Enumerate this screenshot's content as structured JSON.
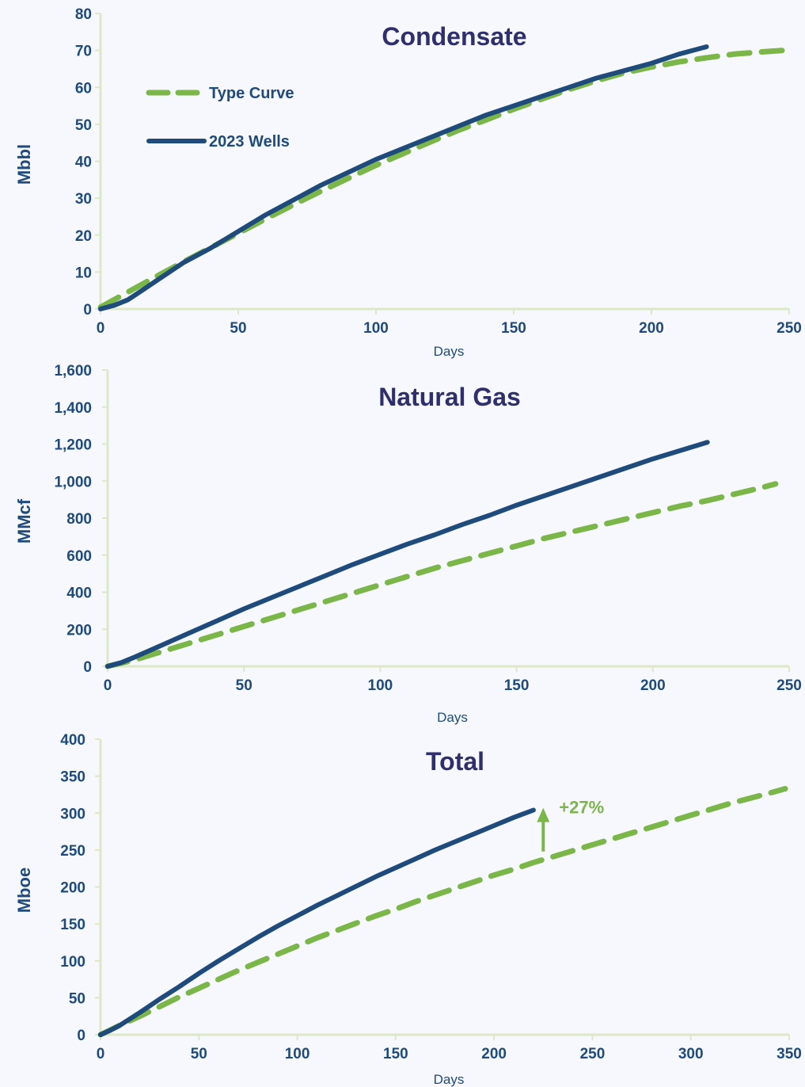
{
  "colors": {
    "type_curve": "#7ab648",
    "wells": "#1f4a7c",
    "axis": "#dce9c6",
    "tick_text": "#1f4a7c",
    "title": "#2f2f6e",
    "background": "#f6f8fd"
  },
  "legend": {
    "type_curve_label": "Type Curve",
    "wells_label": "2023 Wells"
  },
  "chart_data": [
    {
      "type": "line",
      "title": "Condensate",
      "xlabel": "Days",
      "ylabel": "Mbbl",
      "xlim": [
        0,
        250
      ],
      "ylim": [
        0,
        80
      ],
      "xticks": [
        0,
        50,
        100,
        150,
        200,
        250
      ],
      "yticks": [
        0,
        10,
        20,
        30,
        40,
        50,
        60,
        70,
        80
      ],
      "ytick_labels": [
        "0",
        "10",
        "20",
        "30",
        "40",
        "50",
        "60",
        "70",
        "80"
      ],
      "legend_position": "top-left",
      "series": [
        {
          "name": "Type Curve",
          "style": "dashed",
          "x": [
            0,
            10,
            20,
            30,
            40,
            50,
            60,
            70,
            80,
            90,
            100,
            110,
            120,
            130,
            140,
            150,
            160,
            170,
            180,
            190,
            200,
            210,
            220,
            230,
            240,
            248
          ],
          "y": [
            0.5,
            4.6,
            8.7,
            12.7,
            16.6,
            20.5,
            24.4,
            28.2,
            31.9,
            35.4,
            38.9,
            42.1,
            45.3,
            48.4,
            51.2,
            54.1,
            56.8,
            59.4,
            61.8,
            63.9,
            65.5,
            66.9,
            68.0,
            69.0,
            69.6,
            70.0
          ]
        },
        {
          "name": "2023 Wells",
          "style": "solid",
          "x": [
            0,
            5,
            10,
            15,
            20,
            30,
            40,
            50,
            60,
            70,
            80,
            90,
            100,
            110,
            120,
            130,
            140,
            150,
            160,
            170,
            180,
            190,
            200,
            210,
            220
          ],
          "y": [
            0.0,
            1.0,
            2.5,
            5.0,
            7.5,
            12.5,
            16.5,
            21.0,
            25.5,
            29.5,
            33.5,
            37.0,
            40.5,
            43.5,
            46.5,
            49.5,
            52.5,
            55.0,
            57.5,
            60.0,
            62.5,
            64.5,
            66.5,
            69.0,
            71.0
          ]
        }
      ]
    },
    {
      "type": "line",
      "title": "Natural Gas",
      "xlabel": "Days",
      "ylabel": "MMcf",
      "xlim": [
        0,
        250
      ],
      "ylim": [
        0,
        1600
      ],
      "xticks": [
        0,
        50,
        100,
        150,
        200,
        250
      ],
      "yticks": [
        0,
        200,
        400,
        600,
        800,
        1000,
        1200,
        1400,
        1600
      ],
      "ytick_labels": [
        "0",
        "200",
        "400",
        "600",
        "800",
        "1,000",
        "1,200",
        "1,400",
        "1,600"
      ],
      "series": [
        {
          "name": "Type Curve",
          "style": "dashed",
          "x": [
            0,
            10,
            20,
            30,
            40,
            50,
            60,
            70,
            80,
            90,
            100,
            110,
            120,
            130,
            140,
            150,
            160,
            170,
            180,
            190,
            200,
            210,
            220,
            230,
            240,
            245
          ],
          "y": [
            0,
            35,
            80,
            125,
            170,
            215,
            260,
            305,
            350,
            395,
            440,
            485,
            530,
            570,
            610,
            650,
            690,
            725,
            760,
            795,
            830,
            865,
            895,
            930,
            965,
            985
          ]
        },
        {
          "name": "2023 Wells",
          "style": "solid",
          "x": [
            0,
            5,
            10,
            20,
            30,
            40,
            50,
            60,
            70,
            80,
            90,
            100,
            110,
            120,
            130,
            140,
            150,
            160,
            170,
            180,
            190,
            200,
            210,
            220
          ],
          "y": [
            0,
            20,
            50,
            115,
            180,
            245,
            310,
            370,
            430,
            490,
            550,
            605,
            660,
            710,
            765,
            815,
            870,
            920,
            970,
            1020,
            1070,
            1120,
            1165,
            1210
          ]
        }
      ]
    },
    {
      "type": "line",
      "title": "Total",
      "xlabel": "Days",
      "ylabel": "Mboe",
      "xlim": [
        0,
        350
      ],
      "ylim": [
        0,
        400
      ],
      "xticks": [
        0,
        50,
        100,
        150,
        200,
        250,
        300,
        350
      ],
      "yticks": [
        0,
        50,
        100,
        150,
        200,
        250,
        300,
        350,
        400
      ],
      "ytick_labels": [
        "0",
        "50",
        "100",
        "150",
        "200",
        "250",
        "300",
        "350",
        "400"
      ],
      "annotation": {
        "text": "+27%",
        "x": 225,
        "y_from": 248,
        "y_to": 306
      },
      "series": [
        {
          "name": "Type Curve",
          "style": "dashed",
          "x": [
            0,
            10,
            20,
            30,
            40,
            50,
            60,
            70,
            80,
            90,
            100,
            110,
            120,
            130,
            140,
            150,
            160,
            170,
            180,
            190,
            200,
            210,
            220,
            230,
            240,
            250,
            260,
            270,
            280,
            290,
            300,
            310,
            320,
            330,
            340,
            348
          ],
          "y": [
            0,
            13,
            25,
            38,
            51,
            63,
            75,
            87,
            98,
            109,
            120,
            131,
            141,
            151,
            161,
            170,
            180,
            189,
            198,
            207,
            216,
            224,
            233,
            241,
            249,
            257,
            265,
            273,
            281,
            289,
            297,
            305,
            313,
            320,
            327,
            333
          ]
        },
        {
          "name": "2023 Wells",
          "style": "solid",
          "x": [
            0,
            5,
            10,
            20,
            30,
            40,
            50,
            60,
            70,
            80,
            90,
            100,
            110,
            120,
            130,
            140,
            150,
            160,
            170,
            180,
            190,
            200,
            210,
            220
          ],
          "y": [
            0,
            6,
            13,
            30,
            48,
            65,
            83,
            100,
            116,
            132,
            147,
            161,
            175,
            188,
            201,
            214,
            226,
            238,
            250,
            261,
            272,
            283,
            294,
            304
          ]
        }
      ]
    }
  ]
}
